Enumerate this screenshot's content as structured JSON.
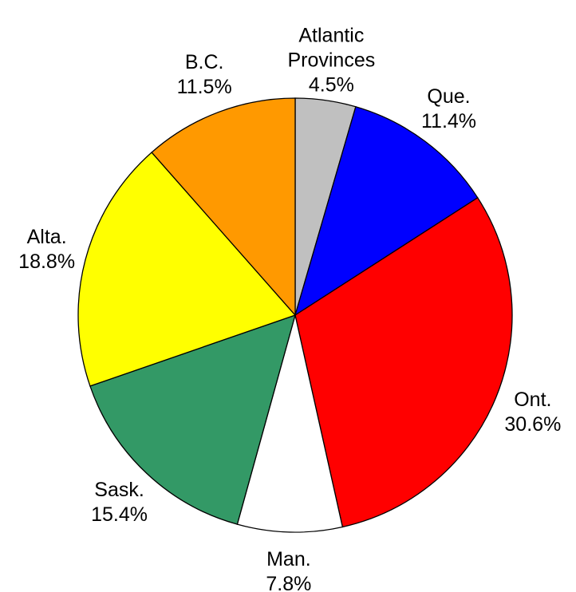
{
  "chart_data": {
    "type": "pie",
    "categories": [
      "Atlantic Provinces",
      "Que.",
      "Ont.",
      "Man.",
      "Sask.",
      "Alta.",
      "B.C."
    ],
    "values": [
      4.5,
      11.4,
      30.6,
      7.8,
      15.4,
      18.8,
      11.5
    ],
    "value_labels": [
      "4.5%",
      "11.4%",
      "30.6%",
      "7.8%",
      "15.4%",
      "18.8%",
      "11.5%"
    ],
    "colors": [
      "#c0c0c0",
      "#0000ff",
      "#ff0000",
      "#ffffff",
      "#339966",
      "#ffff00",
      "#ff9900"
    ]
  }
}
